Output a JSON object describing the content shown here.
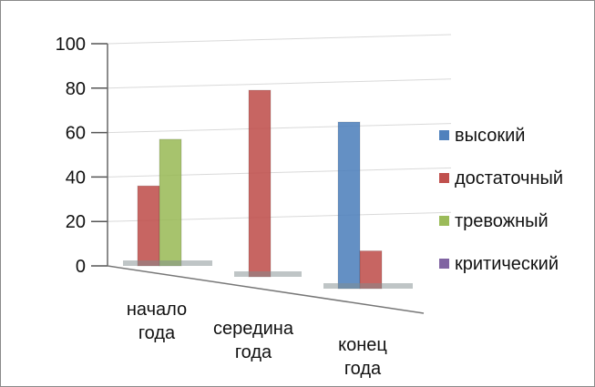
{
  "chart_data": {
    "type": "bar",
    "title": "",
    "xlabel": "",
    "ylabel": "",
    "ylim": [
      0,
      100
    ],
    "yticks": [
      0,
      20,
      40,
      60,
      80,
      100
    ],
    "grid": true,
    "legend_position": "right",
    "categories": [
      [
        "начало",
        "года"
      ],
      [
        "середина",
        "года"
      ],
      [
        "конец",
        "года"
      ]
    ],
    "series": [
      {
        "name": "высокий",
        "color": "#4F81BD",
        "values": [
          0,
          0,
          75
        ]
      },
      {
        "name": "достаточный",
        "color": "#C0504D",
        "values": [
          36,
          84,
          17
        ]
      },
      {
        "name": "тревожный",
        "color": "#9BBB59",
        "values": [
          57,
          0,
          0
        ]
      },
      {
        "name": "критический",
        "color": "#8064A2",
        "values": [
          0,
          0,
          0
        ]
      }
    ]
  }
}
